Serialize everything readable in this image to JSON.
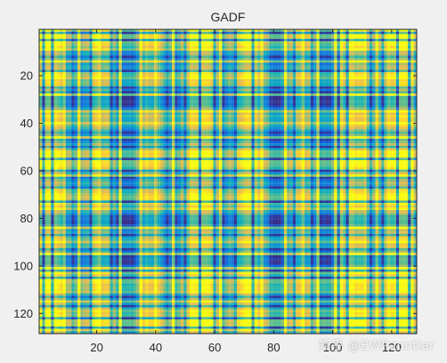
{
  "chart_data": {
    "type": "heatmap",
    "title": "GADF",
    "xlabel": "",
    "ylabel": "",
    "size": 128,
    "xlim": [
      0.5,
      128.5
    ],
    "ylim": [
      0.5,
      128.5
    ],
    "y_reversed": true,
    "xticks": [
      20,
      40,
      60,
      80,
      100,
      120
    ],
    "yticks": [
      20,
      40,
      60,
      80,
      100,
      120
    ],
    "colormap": "parula",
    "bright_lines": [
      3,
      9,
      14,
      21,
      28,
      35,
      40,
      46,
      52,
      57,
      62,
      71,
      76,
      84,
      90,
      95,
      101,
      103,
      107,
      111,
      115,
      119,
      124,
      127
    ],
    "dark_lines": [
      2,
      5,
      12,
      18,
      25,
      31,
      44,
      50,
      55,
      60,
      63,
      67,
      73,
      80,
      87,
      93,
      99,
      102,
      105,
      113,
      117,
      122,
      126
    ]
  },
  "watermark": "知乎 @EWRzontiar"
}
